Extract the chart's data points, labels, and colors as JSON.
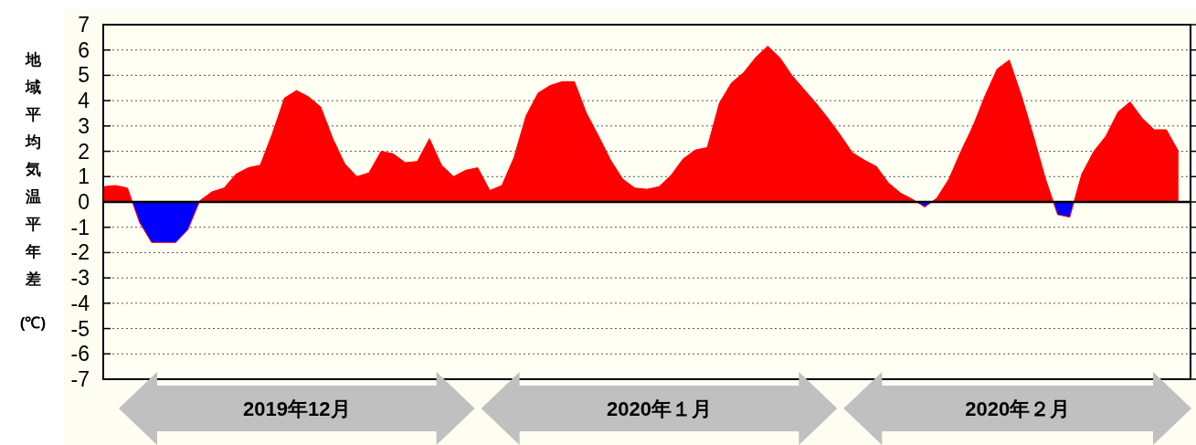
{
  "chart_data": {
    "type": "area",
    "ylabel": "地域平均気温平年差(℃)",
    "categories": [
      null,
      null,
      null,
      null,
      null,
      null,
      null,
      null,
      null,
      null,
      null,
      null,
      null,
      null,
      null,
      null,
      null,
      null,
      null,
      null,
      null,
      null,
      null,
      null,
      null,
      null,
      null,
      null,
      null,
      null,
      null,
      null,
      null,
      null,
      null,
      null,
      null,
      null,
      null,
      null,
      null,
      null,
      null,
      null,
      null,
      null,
      null,
      null,
      null,
      null,
      null,
      null,
      null,
      null,
      null,
      null,
      null,
      null,
      null,
      null,
      null,
      null,
      null,
      null,
      null,
      null,
      null,
      null,
      null,
      null,
      null,
      null,
      null,
      null,
      null,
      null,
      null,
      null,
      null,
      null,
      null,
      null,
      null,
      null,
      null,
      null,
      null,
      null,
      null,
      null
    ],
    "series": [
      {
        "color": "#ff0000",
        "colors": [
          "#ff0000",
          "#ff0000",
          "#ff0000",
          "#0000ff",
          "#0000ff",
          "#0000ff",
          "#0000ff",
          "#0000ff",
          "#ff0000",
          "#ff0000",
          "#ff0000",
          "#ff0000",
          "#ff0000",
          "#ff0000",
          "#ff0000",
          "#ff0000",
          "#ff0000",
          "#ff0000",
          "#ff0000",
          "#ff0000",
          "#ff0000",
          "#ff0000",
          "#ff0000",
          "#ff0000",
          "#ff0000",
          "#ff0000",
          "#ff0000",
          "#ff0000",
          "#ff0000",
          "#ff0000",
          "#ff0000",
          "#ff0000",
          "#ff0000",
          "#ff0000",
          "#ff0000",
          "#ff0000",
          "#ff0000",
          "#ff0000",
          "#ff0000",
          "#ff0000",
          "#ff0000",
          "#ff0000",
          "#ff0000",
          "#ff0000",
          "#ff0000",
          "#ff0000",
          "#ff0000",
          "#ff0000",
          "#ff0000",
          "#ff0000",
          "#ff0000",
          "#ff0000",
          "#ff0000",
          "#ff0000",
          "#ff0000",
          "#ff0000",
          "#ff0000",
          "#ff0000",
          "#ff0000",
          "#ff0000",
          "#ff0000",
          "#ff0000",
          "#ff0000",
          "#ff0000",
          "#ff0000",
          "#ff0000",
          "#ff0000",
          "#ff0000",
          "#0000ff",
          "#ff0000",
          "#ff0000",
          "#ff0000",
          "#ff0000",
          "#ff0000",
          "#ff0000",
          "#ff0000",
          "#ff0000",
          "#ff0000",
          "#ff0000",
          "#0000ff",
          "#0000ff",
          "#ff0000",
          "#ff0000",
          "#ff0000",
          "#ff0000",
          "#ff0000",
          "#ff0000",
          "#ff0000",
          "#ff0000",
          "#ff0000"
        ],
        "values": [
          0.6,
          0.65,
          0.55,
          -0.8,
          -1.6,
          -1.6,
          -1.6,
          -1.1,
          0.05,
          0.4,
          0.55,
          1.1,
          1.35,
          1.45,
          2.7,
          4.1,
          4.4,
          4.15,
          3.75,
          2.5,
          1.5,
          1.0,
          1.15,
          2.0,
          1.9,
          1.55,
          1.6,
          2.5,
          1.45,
          1.0,
          1.25,
          1.35,
          0.45,
          0.65,
          1.75,
          3.4,
          4.3,
          4.6,
          4.75,
          4.75,
          3.5,
          2.6,
          1.65,
          0.9,
          0.55,
          0.5,
          0.6,
          1.05,
          1.7,
          2.05,
          2.15,
          3.9,
          4.7,
          5.1,
          5.7,
          6.15,
          5.7,
          5.0,
          4.45,
          3.9,
          3.3,
          2.65,
          1.95,
          1.65,
          1.4,
          0.75,
          0.35,
          0.1,
          -0.2,
          0.15,
          0.9,
          2.0,
          3.0,
          4.2,
          5.25,
          5.6,
          4.2,
          2.6,
          0.9,
          -0.5,
          -0.6,
          1.1,
          2.0,
          2.6,
          3.55,
          3.95,
          3.3,
          2.85,
          2.85,
          2.0
        ]
      }
    ],
    "ylim": [
      -7,
      7
    ],
    "yticks": [
      -7,
      -6,
      -5,
      -4,
      -3,
      -2,
      -1,
      0,
      1,
      2,
      3,
      4,
      5,
      6,
      7
    ],
    "tick_labels": "y",
    "grid": "y",
    "ref_lines": [
      {
        "axis": "y",
        "value": 0,
        "color": "#000000"
      }
    ],
    "annotations": [
      "2019年12月",
      "2020年１月",
      "2020年２月"
    ]
  }
}
